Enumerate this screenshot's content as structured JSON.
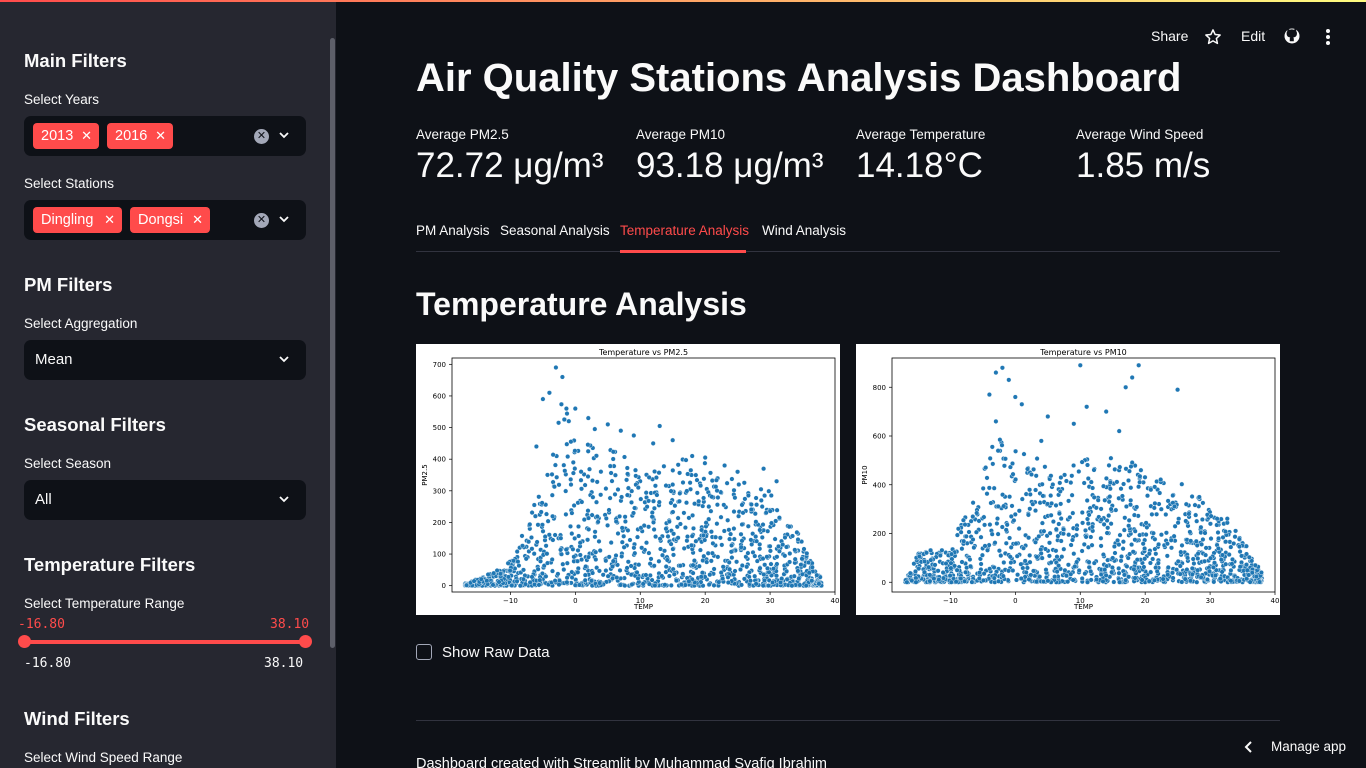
{
  "sidebar": {
    "main_filters_heading": "Main Filters",
    "years": {
      "label": "Select Years",
      "selected": [
        "2013",
        "2016"
      ]
    },
    "stations": {
      "label": "Select Stations",
      "selected": [
        "Dingling",
        "Dongsi"
      ]
    },
    "pm_filters_heading": "PM Filters",
    "aggregation": {
      "label": "Select Aggregation",
      "value": "Mean"
    },
    "seasonal_filters_heading": "Seasonal Filters",
    "season": {
      "label": "Select Season",
      "value": "All"
    },
    "temperature_filters_heading": "Temperature Filters",
    "temperature_range": {
      "label": "Select Temperature Range",
      "low": "-16.80",
      "high": "38.10",
      "min": "-16.80",
      "max": "38.10"
    },
    "wind_filters_heading": "Wind Filters",
    "wind_range_label": "Select Wind Speed Range"
  },
  "toolbar": {
    "share": "Share",
    "edit": "Edit",
    "icons": [
      "star-icon",
      "github-icon",
      "more-vert-icon"
    ]
  },
  "title": "Air Quality Stations Analysis Dashboard",
  "metrics": [
    {
      "label": "Average PM2.5",
      "value": "72.72 μg/m³"
    },
    {
      "label": "Average PM10",
      "value": "93.18 μg/m³"
    },
    {
      "label": "Average Temperature",
      "value": "14.18°C"
    },
    {
      "label": "Average Wind Speed",
      "value": "1.85 m/s"
    }
  ],
  "tabs": [
    {
      "label": "PM Analysis",
      "active": false
    },
    {
      "label": "Seasonal Analysis",
      "active": false
    },
    {
      "label": "Temperature Analysis",
      "active": true
    },
    {
      "label": "Wind Analysis",
      "active": false
    }
  ],
  "section_heading": "Temperature Analysis",
  "chart_data": [
    {
      "type": "scatter",
      "title": "Temperature vs PM2.5",
      "xlabel": "TEMP",
      "ylabel": "PM2.5",
      "xlim": [
        -19,
        40
      ],
      "ylim": [
        -20,
        720
      ],
      "xticks": [
        -10,
        0,
        10,
        20,
        30,
        40
      ],
      "yticks": [
        0,
        100,
        200,
        300,
        400,
        500,
        600,
        700
      ],
      "color": "#1f77b4",
      "envelope": [
        [
          -17,
          8
        ],
        [
          -14,
          30
        ],
        [
          -10,
          80
        ],
        [
          -8,
          170
        ],
        [
          -5,
          330
        ],
        [
          -3,
          480
        ],
        [
          -2,
          620
        ],
        [
          0,
          460
        ],
        [
          3,
          470
        ],
        [
          7,
          420
        ],
        [
          10,
          360
        ],
        [
          15,
          400
        ],
        [
          19,
          400
        ],
        [
          24,
          340
        ],
        [
          28,
          330
        ],
        [
          30,
          300
        ],
        [
          33,
          220
        ],
        [
          35,
          140
        ],
        [
          37,
          60
        ],
        [
          38,
          20
        ]
      ],
      "outliers": [
        [
          -3,
          690
        ],
        [
          -2,
          660
        ],
        [
          -4,
          610
        ],
        [
          -5,
          590
        ],
        [
          0,
          560
        ],
        [
          -1,
          520
        ],
        [
          2,
          530
        ],
        [
          5,
          510
        ],
        [
          7,
          490
        ],
        [
          9,
          475
        ],
        [
          3,
          495
        ],
        [
          -6,
          440
        ],
        [
          13,
          505
        ],
        [
          12,
          450
        ],
        [
          15,
          460
        ],
        [
          18,
          410
        ],
        [
          20,
          405
        ],
        [
          23,
          380
        ],
        [
          25,
          360
        ],
        [
          29,
          370
        ],
        [
          31,
          330
        ]
      ]
    },
    {
      "type": "scatter",
      "title": "Temperature vs PM10",
      "xlabel": "TEMP",
      "ylabel": "PM10",
      "xlim": [
        -19,
        40
      ],
      "ylim": [
        -40,
        920
      ],
      "xticks": [
        -10,
        0,
        10,
        20,
        30,
        40
      ],
      "yticks": [
        0,
        200,
        400,
        600,
        800
      ],
      "color": "#1f77b4",
      "envelope": [
        [
          -17,
          10
        ],
        [
          -15,
          120
        ],
        [
          -12,
          150
        ],
        [
          -10,
          120
        ],
        [
          -8,
          300
        ],
        [
          -5,
          450
        ],
        [
          -3,
          620
        ],
        [
          0,
          560
        ],
        [
          3,
          520
        ],
        [
          6,
          470
        ],
        [
          10,
          500
        ],
        [
          14,
          520
        ],
        [
          18,
          500
        ],
        [
          22,
          440
        ],
        [
          26,
          400
        ],
        [
          30,
          320
        ],
        [
          33,
          260
        ],
        [
          36,
          140
        ],
        [
          38,
          40
        ]
      ],
      "outliers": [
        [
          -2,
          880
        ],
        [
          -3,
          860
        ],
        [
          -1,
          830
        ],
        [
          -4,
          770
        ],
        [
          0,
          760
        ],
        [
          1,
          730
        ],
        [
          10,
          890
        ],
        [
          11,
          720
        ],
        [
          18,
          840
        ],
        [
          19,
          890
        ],
        [
          17,
          800
        ],
        [
          25,
          790
        ],
        [
          14,
          700
        ],
        [
          -3,
          660
        ],
        [
          5,
          680
        ],
        [
          9,
          650
        ],
        [
          16,
          620
        ],
        [
          4,
          580
        ]
      ]
    }
  ],
  "show_raw_data_label": "Show Raw Data",
  "footer_text": "Dashboard created with Streamlit by Muhammad Syafiq Ibrahim",
  "manage_app_label": "Manage app"
}
